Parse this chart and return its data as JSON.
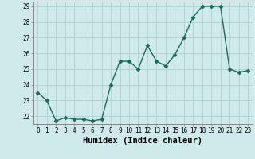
{
  "x": [
    0,
    1,
    2,
    3,
    4,
    5,
    6,
    7,
    8,
    9,
    10,
    11,
    12,
    13,
    14,
    15,
    16,
    17,
    18,
    19,
    20,
    21,
    22,
    23
  ],
  "y": [
    23.5,
    23.0,
    21.7,
    21.9,
    21.8,
    21.8,
    21.7,
    21.8,
    24.0,
    25.5,
    25.5,
    25.0,
    26.5,
    25.5,
    25.2,
    25.9,
    27.0,
    28.3,
    29.0,
    29.0,
    29.0,
    25.0,
    24.8,
    24.9
  ],
  "line_color": "#1a6b5a",
  "marker": "D",
  "marker_size": 2.5,
  "bg_color": "#ceeaea",
  "grid_color": "#aed0ce",
  "xlabel": "Humidex (Indice chaleur)",
  "ylim_min": 21.5,
  "ylim_max": 29.3,
  "xlim_min": -0.5,
  "xlim_max": 23.5,
  "yticks": [
    22,
    23,
    24,
    25,
    26,
    27,
    28,
    29
  ],
  "xticks": [
    0,
    1,
    2,
    3,
    4,
    5,
    6,
    7,
    8,
    9,
    10,
    11,
    12,
    13,
    14,
    15,
    16,
    17,
    18,
    19,
    20,
    21,
    22,
    23
  ],
  "tick_fontsize": 5.5,
  "xlabel_fontsize": 7.5,
  "line_width": 1.0
}
